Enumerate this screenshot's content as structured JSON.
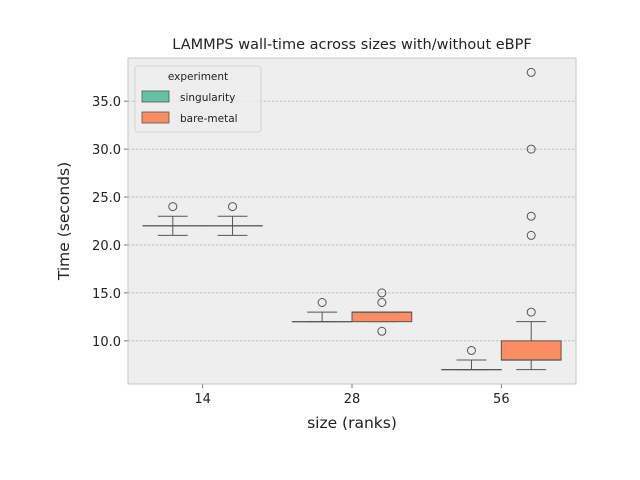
{
  "chart_data": {
    "type": "box",
    "title": "LAMMPS wall-time across sizes with/without eBPF",
    "xlabel": "size (ranks)",
    "ylabel": "Time (seconds)",
    "categories": [
      "14",
      "28",
      "56"
    ],
    "ylim": [
      5.5,
      39.5
    ],
    "yticks": [
      10.0,
      15.0,
      20.0,
      25.0,
      30.0,
      35.0
    ],
    "ytick_labels": [
      "10.0",
      "15.0",
      "20.0",
      "25.0",
      "30.0",
      "35.0"
    ],
    "grid": "y",
    "legend": {
      "title": "experiment",
      "placement": "top-left",
      "entries": [
        "singularity",
        "bare-metal"
      ]
    },
    "colors": {
      "singularity": "#66c2a5",
      "bare-metal": "#fc8d62",
      "line": "#555555",
      "plot_bg": "#eeeeee"
    },
    "series": [
      {
        "name": "singularity",
        "boxes": [
          {
            "category": "14",
            "q1": 22,
            "median": 22,
            "q3": 22,
            "whisker_low": 21,
            "whisker_high": 23,
            "outliers": [
              24
            ]
          },
          {
            "category": "28",
            "q1": 12,
            "median": 12,
            "q3": 12,
            "whisker_low": 12,
            "whisker_high": 13,
            "outliers": [
              14
            ]
          },
          {
            "category": "56",
            "q1": 7,
            "median": 7,
            "q3": 7,
            "whisker_low": 7,
            "whisker_high": 8,
            "outliers": [
              9
            ]
          }
        ]
      },
      {
        "name": "bare-metal",
        "boxes": [
          {
            "category": "14",
            "q1": 22,
            "median": 22,
            "q3": 22,
            "whisker_low": 21,
            "whisker_high": 23,
            "outliers": [
              24
            ]
          },
          {
            "category": "28",
            "q1": 12,
            "median": 13,
            "q3": 13,
            "whisker_low": 12,
            "whisker_high": 13,
            "outliers": [
              11,
              14,
              15
            ]
          },
          {
            "category": "56",
            "q1": 8,
            "median": 8,
            "q3": 10,
            "whisker_low": 7,
            "whisker_high": 12,
            "outliers": [
              13,
              21,
              23,
              30,
              38
            ]
          }
        ]
      }
    ]
  }
}
